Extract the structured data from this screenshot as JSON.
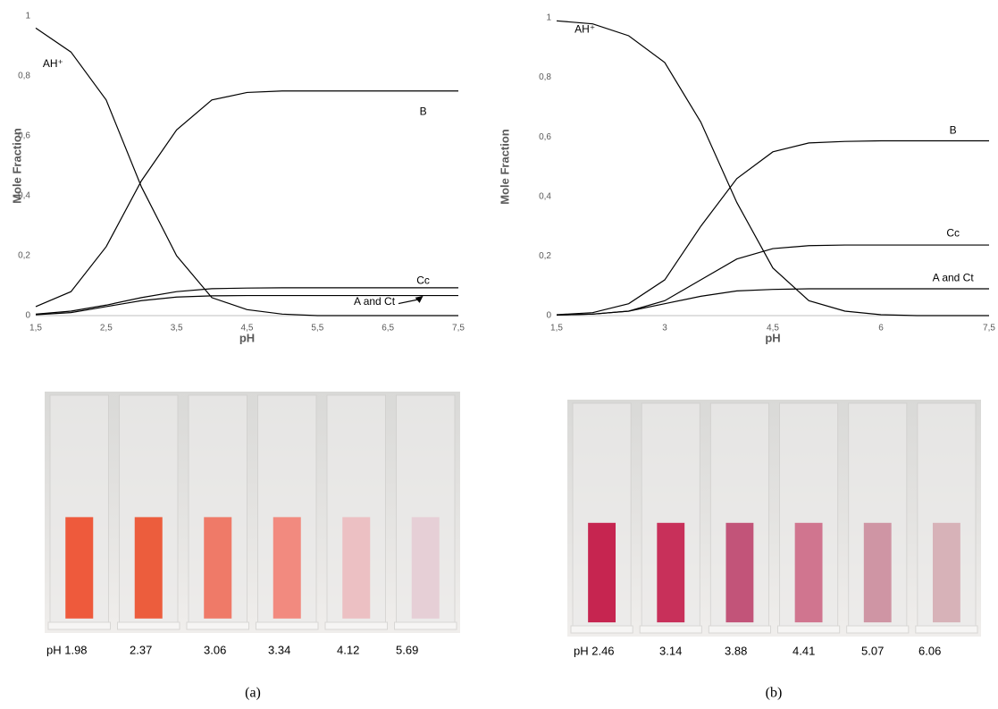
{
  "chart_data": [
    {
      "type": "line",
      "y_label": "Mole Fraction",
      "x_label": "pH",
      "x": [
        1.5,
        2,
        2.5,
        3,
        3.5,
        4,
        4.5,
        5,
        5.5,
        6,
        6.5,
        7,
        7.5
      ],
      "series": [
        {
          "name": "AH⁺",
          "color": "#000000",
          "values": [
            0.96,
            0.88,
            0.72,
            0.43,
            0.2,
            0.06,
            0.02,
            0.005,
            0,
            0,
            0,
            0,
            0
          ]
        },
        {
          "name": "B",
          "color": "#000000",
          "values": [
            0.03,
            0.08,
            0.23,
            0.45,
            0.62,
            0.72,
            0.745,
            0.75,
            0.75,
            0.75,
            0.75,
            0.75,
            0.75
          ]
        },
        {
          "name": "Cc",
          "color": "#000000",
          "values": [
            0.005,
            0.015,
            0.035,
            0.06,
            0.08,
            0.09,
            0.092,
            0.093,
            0.093,
            0.093,
            0.093,
            0.093,
            0.093
          ]
        },
        {
          "name": "A and Ct",
          "color": "#000000",
          "values": [
            0.003,
            0.01,
            0.03,
            0.05,
            0.062,
            0.066,
            0.067,
            0.067,
            0.067,
            0.067,
            0.067,
            0.067,
            0.067
          ]
        }
      ],
      "xlim": [
        1.5,
        7.5
      ],
      "xticks": [
        {
          "value": 1.5,
          "label": "1,5"
        },
        {
          "value": 2.5,
          "label": "2,5"
        },
        {
          "value": 3.5,
          "label": "3,5"
        },
        {
          "value": 4.5,
          "label": "4,5"
        },
        {
          "value": 5.5,
          "label": "5,5"
        },
        {
          "value": 6.5,
          "label": "6,5"
        },
        {
          "value": 7.5,
          "label": "7,5"
        }
      ],
      "ylim": [
        0,
        1
      ],
      "yticks": [
        0,
        {
          "value": 0.2,
          "label": "0,2"
        },
        {
          "value": 0.4,
          "label": "0,4"
        },
        {
          "value": 0.6,
          "label": "0,6"
        },
        {
          "value": 0.8,
          "label": "0,8"
        },
        1
      ],
      "grid": false
    },
    {
      "type": "line",
      "y_label": "Mole Fraction",
      "x_label": "pH",
      "x": [
        1.5,
        2,
        2.5,
        3,
        3.5,
        4,
        4.5,
        5,
        5.5,
        6,
        6.5,
        7,
        7.5
      ],
      "series": [
        {
          "name": "AH⁺",
          "color": "#000000",
          "values": [
            0.99,
            0.98,
            0.94,
            0.85,
            0.65,
            0.38,
            0.16,
            0.05,
            0.015,
            0.003,
            0,
            0,
            0
          ]
        },
        {
          "name": "B",
          "color": "#000000",
          "values": [
            0.003,
            0.01,
            0.04,
            0.12,
            0.3,
            0.46,
            0.55,
            0.58,
            0.585,
            0.587,
            0.587,
            0.587,
            0.587
          ]
        },
        {
          "name": "Cc",
          "color": "#000000",
          "values": [
            0.002,
            0.005,
            0.015,
            0.05,
            0.12,
            0.19,
            0.225,
            0.235,
            0.237,
            0.237,
            0.237,
            0.237,
            0.237
          ]
        },
        {
          "name": "A and Ct",
          "color": "#000000",
          "values": [
            0.002,
            0.005,
            0.015,
            0.04,
            0.065,
            0.083,
            0.088,
            0.09,
            0.09,
            0.09,
            0.09,
            0.09,
            0.09
          ]
        }
      ],
      "xlim": [
        1.5,
        7.5
      ],
      "xticks": [
        {
          "value": 1.5,
          "label": "1,5"
        },
        3,
        {
          "value": 4.5,
          "label": "4,5"
        },
        6,
        {
          "value": 7.5,
          "label": "7,5"
        }
      ],
      "ylim": [
        0,
        1
      ],
      "yticks": [
        0,
        {
          "value": 0.2,
          "label": "0,2"
        },
        {
          "value": 0.4,
          "label": "0,4"
        },
        {
          "value": 0.6,
          "label": "0,6"
        },
        {
          "value": 0.8,
          "label": "0,8"
        },
        1
      ],
      "grid": false
    }
  ],
  "photos": [
    {
      "labels": [
        "pH 1.98",
        "2.37",
        "3.06",
        "3.34",
        "4.12",
        "5.69"
      ],
      "caption": "(a)"
    },
    {
      "labels": [
        "pH 2.46",
        "3.14",
        "3.88",
        "4.41",
        "5.07",
        "6.06"
      ],
      "caption": "(b)"
    }
  ]
}
